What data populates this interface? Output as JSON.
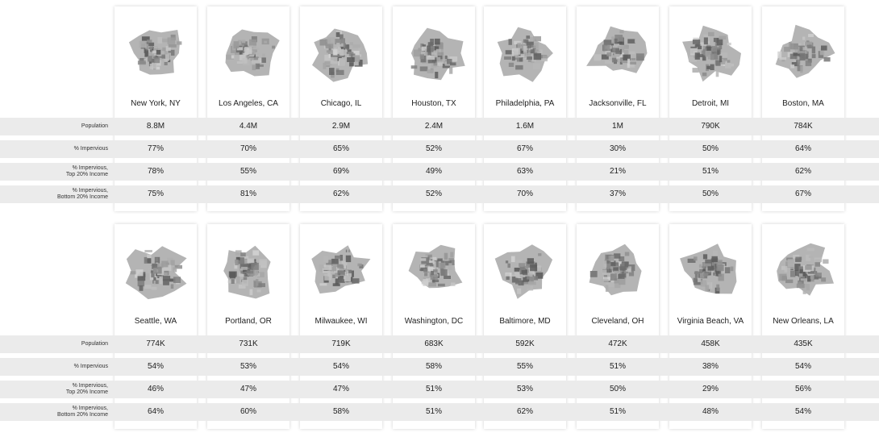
{
  "chart_data": {
    "type": "table",
    "row_labels": [
      [
        "Population"
      ],
      [
        "% Impervious"
      ],
      [
        "% Impervious,",
        "Top 20% Income"
      ],
      [
        "% Impervious,",
        "Bottom 20% Income"
      ]
    ],
    "groups": [
      {
        "cities": [
          {
            "name": "New York, NY",
            "population": "8.8M",
            "impervious": "77%",
            "top20": "78%",
            "bottom20": "75%"
          },
          {
            "name": "Los Angeles, CA",
            "population": "4.4M",
            "impervious": "70%",
            "top20": "55%",
            "bottom20": "81%"
          },
          {
            "name": "Chicago, IL",
            "population": "2.9M",
            "impervious": "65%",
            "top20": "69%",
            "bottom20": "62%"
          },
          {
            "name": "Houston, TX",
            "population": "2.4M",
            "impervious": "52%",
            "top20": "49%",
            "bottom20": "52%"
          },
          {
            "name": "Philadelphia, PA",
            "population": "1.6M",
            "impervious": "67%",
            "top20": "63%",
            "bottom20": "70%"
          },
          {
            "name": "Jacksonville, FL",
            "population": "1M",
            "impervious": "30%",
            "top20": "21%",
            "bottom20": "37%"
          },
          {
            "name": "Detroit, MI",
            "population": "790K",
            "impervious": "50%",
            "top20": "51%",
            "bottom20": "50%"
          },
          {
            "name": "Boston, MA",
            "population": "784K",
            "impervious": "64%",
            "top20": "62%",
            "bottom20": "67%"
          }
        ]
      },
      {
        "cities": [
          {
            "name": "Seattle, WA",
            "population": "774K",
            "impervious": "54%",
            "top20": "46%",
            "bottom20": "64%"
          },
          {
            "name": "Portland, OR",
            "population": "731K",
            "impervious": "53%",
            "top20": "47%",
            "bottom20": "60%"
          },
          {
            "name": "Milwaukee, WI",
            "population": "719K",
            "impervious": "54%",
            "top20": "47%",
            "bottom20": "58%"
          },
          {
            "name": "Washington, DC",
            "population": "683K",
            "impervious": "58%",
            "top20": "51%",
            "bottom20": "51%"
          },
          {
            "name": "Baltimore, MD",
            "population": "592K",
            "impervious": "55%",
            "top20": "53%",
            "bottom20": "62%"
          },
          {
            "name": "Cleveland, OH",
            "population": "472K",
            "impervious": "51%",
            "top20": "50%",
            "bottom20": "51%"
          },
          {
            "name": "Virginia Beach, VA",
            "population": "458K",
            "impervious": "38%",
            "top20": "29%",
            "bottom20": "48%"
          },
          {
            "name": "New Orleans, LA",
            "population": "435K",
            "impervious": "54%",
            "top20": "56%",
            "bottom20": "54%"
          }
        ]
      }
    ],
    "colors": {
      "band": "#ebebeb",
      "map_dark": "#555555",
      "map_light": "#d4d4d4"
    }
  }
}
